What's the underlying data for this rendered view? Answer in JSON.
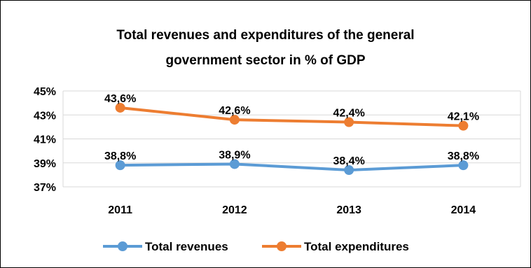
{
  "chart_data": {
    "type": "line",
    "title_line1": "Total revenues and expenditures of the general",
    "title_line2": "government sector in % of GDP",
    "categories": [
      "2011",
      "2012",
      "2013",
      "2014"
    ],
    "y_ticks": [
      "45%",
      "43%",
      "41%",
      "39%",
      "37%"
    ],
    "ylim": [
      37,
      45
    ],
    "grid": true,
    "legend_position": "bottom",
    "series": [
      {
        "name": "Total revenues",
        "color": "#5B9BD5",
        "values": [
          38.8,
          38.9,
          38.4,
          38.8
        ],
        "labels": [
          "38,8%",
          "38,9%",
          "38,4%",
          "38,8%"
        ]
      },
      {
        "name": "Total expenditures",
        "color": "#ED7D31",
        "values": [
          43.6,
          42.6,
          42.4,
          42.1
        ],
        "labels": [
          "43,6%",
          "42,6%",
          "42,4%",
          "42,1%"
        ]
      }
    ]
  }
}
